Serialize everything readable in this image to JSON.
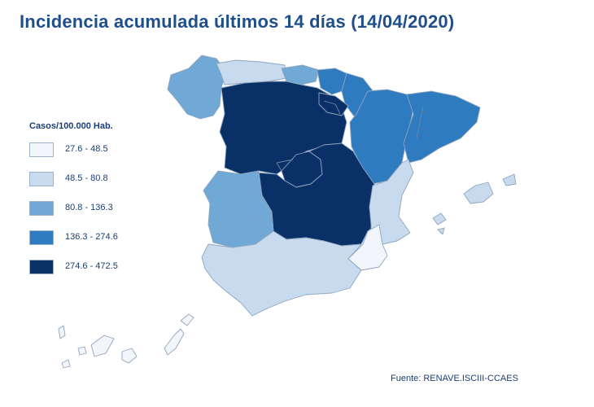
{
  "title": "Incidencia acumulada últimos 14 días (14/04/2020)",
  "legend": {
    "title": "Casos/100.000 Hab.",
    "items": [
      {
        "label": "27.6 - 48.5",
        "color": "#f2f6fb"
      },
      {
        "label": "48.5 - 80.8",
        "color": "#c8daee"
      },
      {
        "label": "80.8 - 136.3",
        "color": "#70a9d6"
      },
      {
        "label": "136.3 - 274.6",
        "color": "#2f7bbf"
      },
      {
        "label": "274.6 - 472.5",
        "color": "#0a3068"
      }
    ]
  },
  "source": "Fuente: RENAVE.ISCIII-CCAES",
  "map_regions": [
    {
      "name": "Galicia",
      "class": 2
    },
    {
      "name": "Asturias",
      "class": 1
    },
    {
      "name": "Cantabria",
      "class": 2
    },
    {
      "name": "País Vasco",
      "class": 3
    },
    {
      "name": "Navarra",
      "class": 3
    },
    {
      "name": "Aragón",
      "class": 3
    },
    {
      "name": "Cataluña",
      "class": 3
    },
    {
      "name": "Castilla y León",
      "class": 4
    },
    {
      "name": "La Rioja",
      "class": 4
    },
    {
      "name": "Madrid",
      "class": 4
    },
    {
      "name": "Castilla-La Mancha",
      "class": 4
    },
    {
      "name": "Extremadura",
      "class": 2
    },
    {
      "name": "Comunidad Valenciana",
      "class": 1
    },
    {
      "name": "Región de Murcia",
      "class": 0
    },
    {
      "name": "Andalucía",
      "class": 1
    },
    {
      "name": "Islas Baleares",
      "class": 1
    },
    {
      "name": "Canarias",
      "class": 0
    }
  ]
}
